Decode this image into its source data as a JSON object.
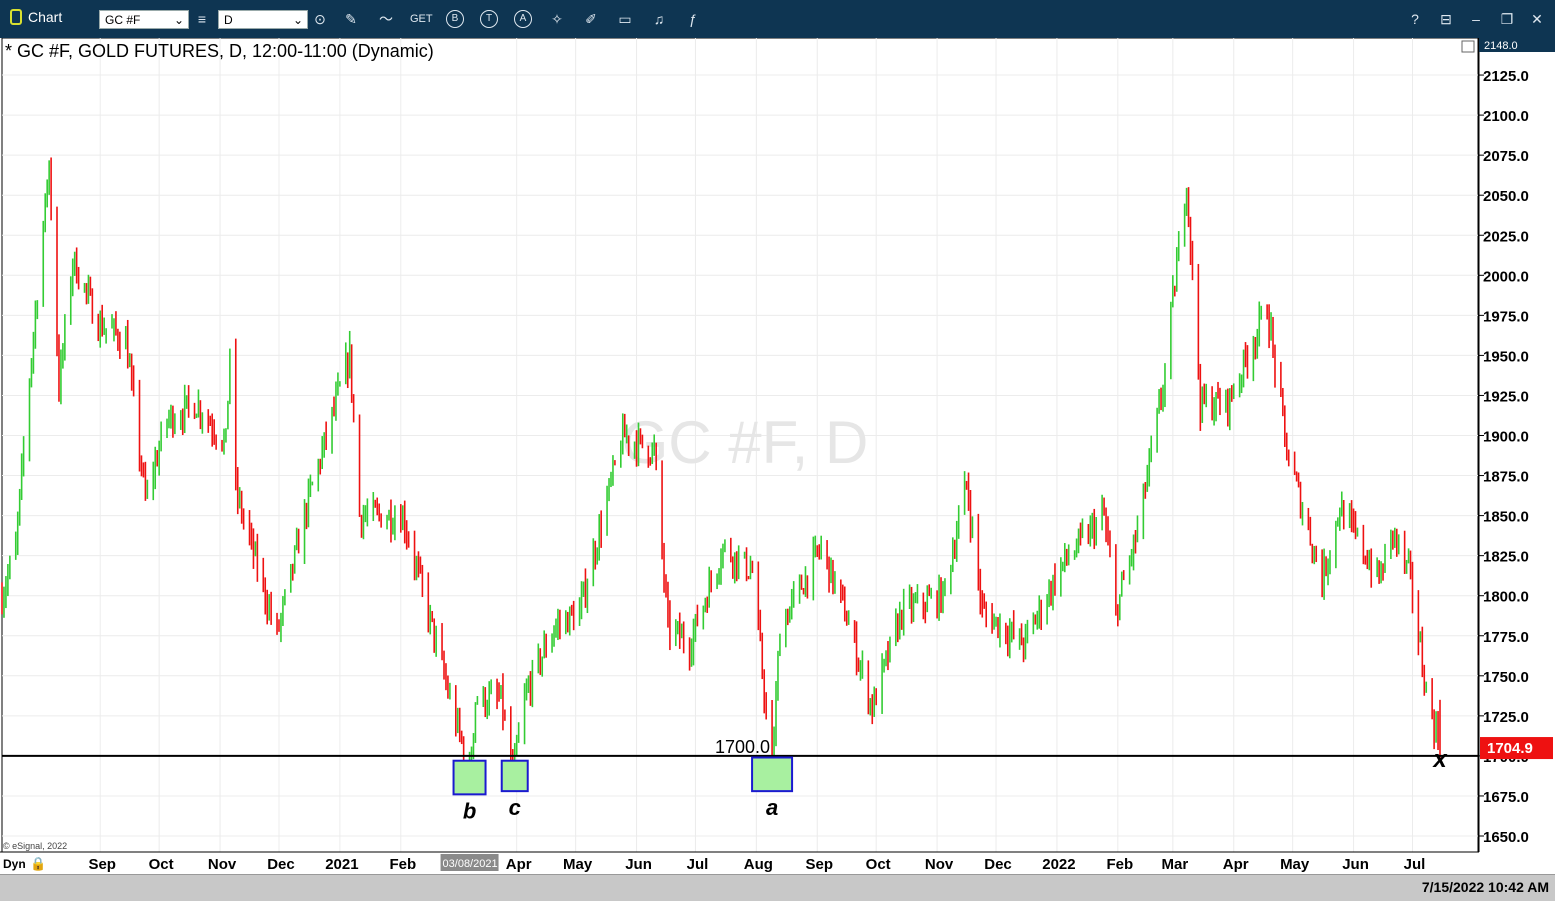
{
  "app": {
    "title": "Chart",
    "symbol_input": "GC #F",
    "interval_input": "D",
    "toolbar_icons": [
      "pencil-icon",
      "trend-icon",
      "get-icon",
      "b-circle-icon",
      "t-circle-icon",
      "a-circle-icon",
      "tools-icon",
      "edit-icon",
      "comment-icon",
      "twitter-icon",
      "facebook-icon"
    ],
    "get_label": "GET",
    "b_label": "B",
    "t_label": "T",
    "a_label": "A",
    "help_label": "?",
    "window_icons": [
      "help-icon",
      "note-icon",
      "minimize-icon",
      "restore-icon",
      "close-icon"
    ]
  },
  "chart_title": "* GC #F, GOLD FUTURES, D, 12:00-11:00 (Dynamic)",
  "watermark": "GC #F, D",
  "copyright": "© eSignal, 2022",
  "dyn_label": "Dyn",
  "cursor_date_label": "03/08/2021",
  "top_price_label": "2148.0",
  "last_price_label": "1704.9",
  "hline_label": "1700.0",
  "timestamp": "7/15/2022 10:42 AM",
  "chart_data": {
    "type": "bar",
    "title": "* GC #F, GOLD FUTURES, D, 12:00-11:00 (Dynamic)",
    "y_range": [
      1640,
      2148
    ],
    "y_ticks": [
      "2125.0",
      "2100.0",
      "2075.0",
      "2050.0",
      "2025.0",
      "2000.0",
      "1975.0",
      "1950.0",
      "1925.0",
      "1900.0",
      "1875.0",
      "1850.0",
      "1825.0",
      "1800.0",
      "1775.0",
      "1750.0",
      "1725.0",
      "1700.0",
      "1675.0",
      "1650.0"
    ],
    "x_tick_labels": [
      "Sep",
      "Oct",
      "Nov",
      "Dec",
      "2021",
      "Feb",
      "Apr",
      "May",
      "Jun",
      "Jul",
      "Aug",
      "Sep",
      "Oct",
      "Nov",
      "Dec",
      "2022",
      "Feb",
      "Mar",
      "Apr",
      "May",
      "Jun",
      "Jul"
    ],
    "x_range": [
      "2020-07-13",
      "2022-07-29"
    ],
    "price_path": [
      [
        "2020-07-13",
        1800
      ],
      [
        "2020-07-20",
        1830
      ],
      [
        "2020-07-28",
        1950
      ],
      [
        "2020-08-06",
        2070
      ],
      [
        "2020-08-11",
        1930
      ],
      [
        "2020-08-18",
        2010
      ],
      [
        "2020-08-31",
        1970
      ],
      [
        "2020-09-14",
        1960
      ],
      [
        "2020-09-24",
        1860
      ],
      [
        "2020-10-05",
        1910
      ],
      [
        "2020-10-20",
        1920
      ],
      [
        "2020-11-04",
        1895
      ],
      [
        "2020-11-06",
        1955
      ],
      [
        "2020-11-09",
        1865
      ],
      [
        "2020-11-30",
        1775
      ],
      [
        "2020-12-16",
        1860
      ],
      [
        "2021-01-06",
        1950
      ],
      [
        "2021-01-11",
        1850
      ],
      [
        "2021-02-02",
        1850
      ],
      [
        "2021-02-18",
        1775
      ],
      [
        "2021-02-26",
        1735
      ],
      [
        "2021-03-08",
        1690
      ],
      [
        "2021-03-11",
        1735
      ],
      [
        "2021-03-24",
        1735
      ],
      [
        "2021-03-30",
        1690
      ],
      [
        "2021-04-06",
        1740
      ],
      [
        "2021-04-20",
        1780
      ],
      [
        "2021-05-03",
        1790
      ],
      [
        "2021-05-25",
        1900
      ],
      [
        "2021-06-10",
        1890
      ],
      [
        "2021-06-17",
        1780
      ],
      [
        "2021-06-28",
        1770
      ],
      [
        "2021-07-15",
        1830
      ],
      [
        "2021-07-30",
        1815
      ],
      [
        "2021-08-09",
        1690
      ],
      [
        "2021-08-13",
        1780
      ],
      [
        "2021-09-03",
        1830
      ],
      [
        "2021-09-15",
        1790
      ],
      [
        "2021-09-29",
        1730
      ],
      [
        "2021-10-14",
        1790
      ],
      [
        "2021-11-04",
        1800
      ],
      [
        "2021-11-16",
        1870
      ],
      [
        "2021-11-24",
        1790
      ],
      [
        "2021-12-15",
        1770
      ],
      [
        "2022-01-04",
        1820
      ],
      [
        "2022-01-25",
        1850
      ],
      [
        "2022-01-31",
        1790
      ],
      [
        "2022-02-11",
        1840
      ],
      [
        "2022-02-24",
        1930
      ],
      [
        "2022-03-08",
        2060
      ],
      [
        "2022-03-15",
        1920
      ],
      [
        "2022-03-29",
        1920
      ],
      [
        "2022-04-18",
        1980
      ],
      [
        "2022-04-28",
        1890
      ],
      [
        "2022-05-16",
        1810
      ],
      [
        "2022-05-25",
        1855
      ],
      [
        "2022-06-14",
        1810
      ],
      [
        "2022-06-21",
        1840
      ],
      [
        "2022-06-30",
        1810
      ],
      [
        "2022-07-08",
        1740
      ],
      [
        "2022-07-15",
        1705
      ]
    ],
    "bar_colors": {
      "up": "#33cc33",
      "down": "#ee1111"
    },
    "hline": {
      "value": 1700.0,
      "label": "1700.0"
    },
    "last_price": 1704.9,
    "annotations": [
      {
        "label": "b",
        "date": "2021-03-08",
        "low": 1676,
        "high": 1697
      },
      {
        "label": "c",
        "date": "2021-03-31",
        "low": 1678,
        "high": 1697
      },
      {
        "label": "a",
        "date": "2021-08-09",
        "low": 1678,
        "high": 1699
      },
      {
        "label": "x",
        "date": "2022-07-15",
        "low": null,
        "high": null
      }
    ],
    "grid": true
  }
}
